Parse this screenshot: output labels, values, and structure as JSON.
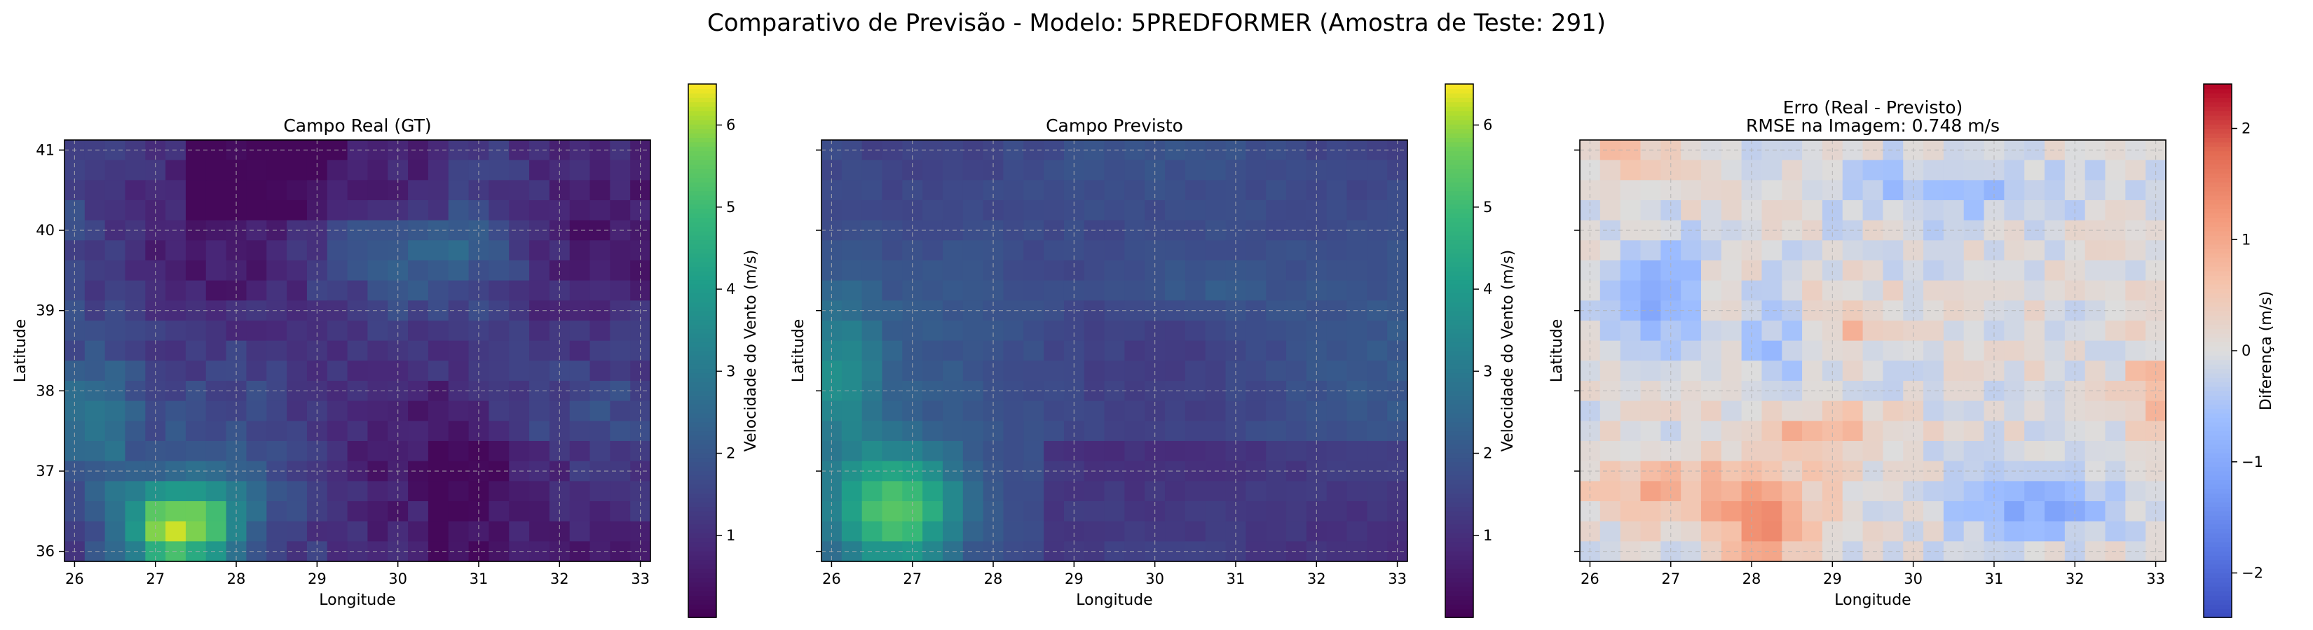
{
  "figure": {
    "suptitle": "Comparativo de Previsão - Modelo: 5PREDFORMER (Amostra de Teste: 291)"
  },
  "chart_data": [
    {
      "type": "heatmap",
      "title": "Campo Real (GT)",
      "xlabel": "Longitude",
      "ylabel": "Latitude",
      "xlim": [
        25.875,
        33.125
      ],
      "ylim": [
        35.875,
        41.125
      ],
      "xticks": [
        "26",
        "27",
        "28",
        "29",
        "30",
        "31",
        "32",
        "33"
      ],
      "yticks": [
        "36",
        "37",
        "38",
        "39",
        "40",
        "41"
      ],
      "grid": true,
      "colormap": "viridis",
      "colorbar": {
        "label": "Velocidade do Vento (m/s)",
        "min": 0,
        "max": 6.5,
        "ticks": [
          "1",
          "2",
          "3",
          "4",
          "5",
          "6"
        ]
      },
      "grid_spec": {
        "rows": 21,
        "cols": 29,
        "lat_start": 41.0,
        "lat_step": -0.25,
        "lon_start": 26.0,
        "lon_step": 0.25
      },
      "values": []
    },
    {
      "type": "heatmap",
      "title": "Campo Previsto",
      "xlabel": "Longitude",
      "ylabel": "Latitude",
      "xlim": [
        25.875,
        33.125
      ],
      "ylim": [
        35.875,
        41.125
      ],
      "xticks": [
        "26",
        "27",
        "28",
        "29",
        "30",
        "31",
        "32",
        "33"
      ],
      "yticks": [
        "36",
        "37",
        "38",
        "39",
        "40",
        "41"
      ],
      "grid": true,
      "colormap": "viridis",
      "colorbar": {
        "label": "Velocidade do Vento (m/s)",
        "min": 0,
        "max": 6.5,
        "ticks": [
          "1",
          "2",
          "3",
          "4",
          "5",
          "6"
        ]
      },
      "grid_spec": {
        "rows": 21,
        "cols": 29,
        "lat_start": 41.0,
        "lat_step": -0.25,
        "lon_start": 26.0,
        "lon_step": 0.25
      },
      "values": []
    },
    {
      "type": "heatmap",
      "title": "Erro (Real - Previsto)",
      "subtitle": "RMSE na Imagem: 0.748 m/s",
      "xlabel": "Longitude",
      "ylabel": "Latitude",
      "xlim": [
        25.875,
        33.125
      ],
      "ylim": [
        35.875,
        41.125
      ],
      "xticks": [
        "26",
        "27",
        "28",
        "29",
        "30",
        "31",
        "32",
        "33"
      ],
      "yticks": [
        "36",
        "37",
        "38",
        "39",
        "40",
        "41"
      ],
      "grid": true,
      "colormap": "coolwarm",
      "colorbar": {
        "label": "Diferença (m/s)",
        "min": -2.4,
        "max": 2.4,
        "ticks": [
          "−2",
          "−1",
          "0",
          "1",
          "2"
        ]
      },
      "grid_spec": {
        "rows": 21,
        "cols": 29,
        "lat_start": 41.0,
        "lat_step": -0.25,
        "lon_start": 26.0,
        "lon_step": 0.25
      },
      "values": []
    }
  ]
}
